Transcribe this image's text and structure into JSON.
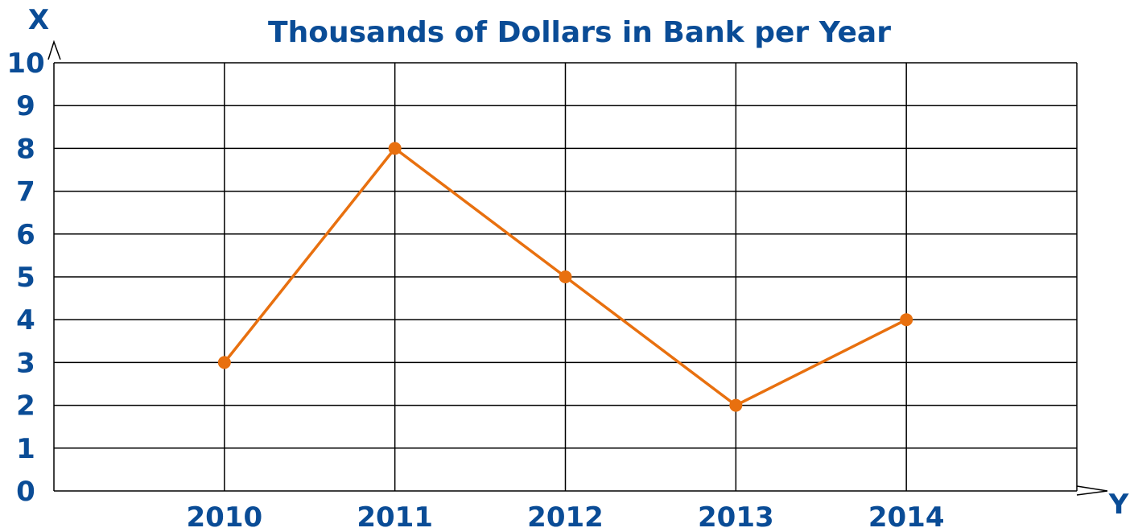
{
  "chart_data": {
    "type": "line",
    "title": "Thousands of Dollars in Bank per Year",
    "y_axis_letter": "X",
    "x_axis_letter": "Y",
    "categories": [
      "2010",
      "2011",
      "2012",
      "2013",
      "2014"
    ],
    "series": [
      {
        "values": [
          3,
          8,
          5,
          2,
          4
        ]
      }
    ],
    "ylim": [
      0,
      10
    ],
    "yticks": [
      0,
      1,
      2,
      3,
      4,
      5,
      6,
      7,
      8,
      9,
      10
    ],
    "grid": true,
    "colors": {
      "line": "#E8700F",
      "text": "#0A4C96",
      "grid": "#000000"
    }
  }
}
